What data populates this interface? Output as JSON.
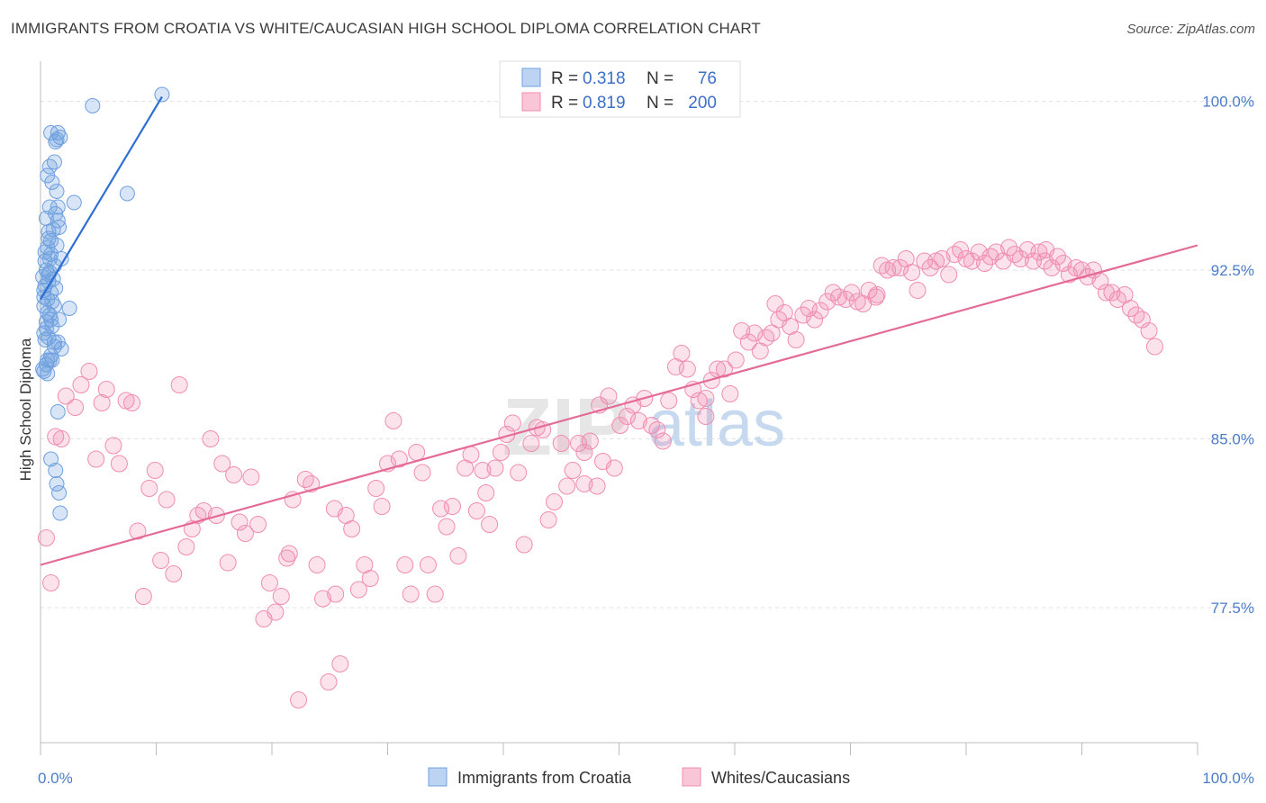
{
  "title": "IMMIGRANTS FROM CROATIA VS WHITE/CAUCASIAN HIGH SCHOOL DIPLOMA CORRELATION CHART",
  "source": "Source: ZipAtlas.com",
  "watermark": {
    "zip": "ZIP",
    "atlas": "atlas"
  },
  "colors": {
    "blue": "#6fa0e0",
    "blue_line": "#2f6fd1",
    "pink": "#f08db0",
    "pink_line": "#e46a98",
    "axis_text": "#4a7cc9",
    "grid": "#e2e2e2"
  },
  "legend": {
    "r_label": "R =",
    "n_label": "N =",
    "entries": [
      {
        "r": "0.318",
        "n": "76"
      },
      {
        "r": "0.819",
        "n": "200"
      }
    ]
  },
  "chart_data": {
    "type": "scatter",
    "title": "IMMIGRANTS FROM CROATIA VS WHITE/CAUCASIAN HIGH SCHOOL DIPLOMA CORRELATION CHART",
    "xlabel": "",
    "ylabel": "High School Diploma",
    "xlim": [
      0,
      100
    ],
    "ylim": [
      71.5,
      101.5
    ],
    "x_tick_labels": [
      "0.0%",
      "100.0%"
    ],
    "y_ticks": [
      77.5,
      85.0,
      92.5,
      100.0
    ],
    "y_tick_labels": [
      "77.5%",
      "85.0%",
      "92.5%",
      "100.0%"
    ],
    "grid": true,
    "legend_position": "top-center",
    "series": [
      {
        "name": "Immigrants from Croatia",
        "color": "#6fa0e0",
        "trend": {
          "x": [
            0,
            10.5
          ],
          "y": [
            91.2,
            100.2
          ]
        },
        "points": [
          [
            0.3,
            88.0
          ],
          [
            0.5,
            88.3
          ],
          [
            0.6,
            88.5
          ],
          [
            0.8,
            88.5
          ],
          [
            1.0,
            88.5
          ],
          [
            0.4,
            89.4
          ],
          [
            0.7,
            89.5
          ],
          [
            1.2,
            89.3
          ],
          [
            1.5,
            89.3
          ],
          [
            0.5,
            90.2
          ],
          [
            0.8,
            90.5
          ],
          [
            1.0,
            90.0
          ],
          [
            1.6,
            90.3
          ],
          [
            2.5,
            90.8
          ],
          [
            0.3,
            90.9
          ],
          [
            0.6,
            91.2
          ],
          [
            0.9,
            91.5
          ],
          [
            1.3,
            91.7
          ],
          [
            0.4,
            91.8
          ],
          [
            0.7,
            92.0
          ],
          [
            0.2,
            92.2
          ],
          [
            0.5,
            92.5
          ],
          [
            1.2,
            92.7
          ],
          [
            0.8,
            93.0
          ],
          [
            1.8,
            93.0
          ],
          [
            0.6,
            93.5
          ],
          [
            0.9,
            93.8
          ],
          [
            1.4,
            93.6
          ],
          [
            0.7,
            94.2
          ],
          [
            1.1,
            94.3
          ],
          [
            1.6,
            94.4
          ],
          [
            0.5,
            94.8
          ],
          [
            1.3,
            95.0
          ],
          [
            1.5,
            95.3
          ],
          [
            2.9,
            95.5
          ],
          [
            0.8,
            95.3
          ],
          [
            1.4,
            96.0
          ],
          [
            7.5,
            95.9
          ],
          [
            0.6,
            96.7
          ],
          [
            1.0,
            96.4
          ],
          [
            0.8,
            97.1
          ],
          [
            1.2,
            97.3
          ],
          [
            0.9,
            98.6
          ],
          [
            1.5,
            98.6
          ],
          [
            1.4,
            98.3
          ],
          [
            1.7,
            98.4
          ],
          [
            1.3,
            98.2
          ],
          [
            4.5,
            99.8
          ],
          [
            10.5,
            100.3
          ],
          [
            1.5,
            86.2
          ],
          [
            0.9,
            84.1
          ],
          [
            1.3,
            83.6
          ],
          [
            1.4,
            83.0
          ],
          [
            1.6,
            82.6
          ],
          [
            1.7,
            81.7
          ],
          [
            0.5,
            89.9
          ],
          [
            0.9,
            90.3
          ],
          [
            1.2,
            89.1
          ],
          [
            0.3,
            91.6
          ],
          [
            0.7,
            92.3
          ],
          [
            1.1,
            92.1
          ],
          [
            0.4,
            93.3
          ],
          [
            0.9,
            93.2
          ],
          [
            0.3,
            89.7
          ],
          [
            0.2,
            88.1
          ],
          [
            0.6,
            87.9
          ],
          [
            1.8,
            89.0
          ],
          [
            0.9,
            88.7
          ],
          [
            0.4,
            92.9
          ],
          [
            1.0,
            91.1
          ],
          [
            0.6,
            90.6
          ],
          [
            1.2,
            90.9
          ],
          [
            0.3,
            91.3
          ],
          [
            0.8,
            92.4
          ],
          [
            1.5,
            94.7
          ],
          [
            0.7,
            93.9
          ]
        ]
      },
      {
        "name": "Whites/Caucasians",
        "color": "#f08db0",
        "trend": {
          "x": [
            0,
            100
          ],
          "y": [
            79.4,
            93.6
          ]
        },
        "points": [
          [
            0.5,
            80.6
          ],
          [
            0.9,
            78.6
          ],
          [
            1.3,
            85.1
          ],
          [
            1.8,
            85.0
          ],
          [
            2.2,
            86.9
          ],
          [
            3.0,
            86.4
          ],
          [
            3.5,
            87.4
          ],
          [
            4.2,
            88.0
          ],
          [
            4.8,
            84.1
          ],
          [
            5.3,
            86.6
          ],
          [
            5.7,
            87.2
          ],
          [
            6.3,
            84.7
          ],
          [
            6.8,
            83.9
          ],
          [
            7.4,
            86.7
          ],
          [
            7.9,
            86.6
          ],
          [
            8.4,
            80.9
          ],
          [
            8.9,
            78.0
          ],
          [
            9.4,
            82.8
          ],
          [
            9.9,
            83.6
          ],
          [
            10.4,
            79.6
          ],
          [
            10.9,
            82.3
          ],
          [
            11.5,
            79.0
          ],
          [
            12.0,
            87.4
          ],
          [
            12.6,
            80.2
          ],
          [
            13.1,
            81.0
          ],
          [
            13.6,
            81.6
          ],
          [
            14.1,
            81.8
          ],
          [
            14.7,
            85.0
          ],
          [
            15.2,
            81.6
          ],
          [
            15.7,
            83.9
          ],
          [
            16.2,
            79.5
          ],
          [
            16.7,
            83.4
          ],
          [
            17.2,
            81.3
          ],
          [
            17.7,
            80.8
          ],
          [
            18.2,
            83.3
          ],
          [
            18.8,
            81.2
          ],
          [
            19.3,
            77.0
          ],
          [
            19.8,
            78.6
          ],
          [
            20.3,
            77.3
          ],
          [
            20.8,
            78.0
          ],
          [
            21.3,
            79.7
          ],
          [
            21.8,
            82.3
          ],
          [
            22.3,
            73.4
          ],
          [
            22.9,
            83.2
          ],
          [
            23.4,
            83.0
          ],
          [
            23.9,
            79.4
          ],
          [
            24.4,
            77.9
          ],
          [
            24.9,
            74.2
          ],
          [
            25.4,
            81.9
          ],
          [
            25.9,
            75.0
          ],
          [
            26.4,
            81.6
          ],
          [
            26.9,
            81.0
          ],
          [
            27.5,
            78.3
          ],
          [
            28.0,
            79.4
          ],
          [
            28.5,
            78.8
          ],
          [
            29.0,
            82.8
          ],
          [
            29.5,
            82.0
          ],
          [
            30.0,
            83.9
          ],
          [
            30.5,
            85.8
          ],
          [
            31.0,
            84.1
          ],
          [
            31.5,
            79.4
          ],
          [
            32.0,
            78.1
          ],
          [
            32.5,
            84.4
          ],
          [
            33.0,
            83.5
          ],
          [
            33.5,
            79.4
          ],
          [
            34.1,
            78.1
          ],
          [
            34.6,
            81.9
          ],
          [
            35.1,
            81.1
          ],
          [
            35.6,
            82.0
          ],
          [
            36.1,
            79.8
          ],
          [
            36.7,
            83.7
          ],
          [
            37.2,
            84.3
          ],
          [
            37.7,
            81.8
          ],
          [
            38.2,
            83.6
          ],
          [
            38.8,
            81.2
          ],
          [
            39.3,
            83.7
          ],
          [
            39.8,
            84.4
          ],
          [
            40.3,
            85.2
          ],
          [
            40.8,
            85.7
          ],
          [
            41.3,
            83.5
          ],
          [
            41.8,
            80.3
          ],
          [
            42.4,
            84.8
          ],
          [
            42.9,
            85.5
          ],
          [
            43.4,
            85.4
          ],
          [
            43.9,
            81.4
          ],
          [
            44.4,
            82.2
          ],
          [
            45.0,
            84.8
          ],
          [
            45.5,
            82.9
          ],
          [
            46.0,
            83.6
          ],
          [
            46.5,
            84.8
          ],
          [
            47.0,
            84.4
          ],
          [
            47.5,
            84.9
          ],
          [
            48.1,
            82.9
          ],
          [
            48.6,
            84.0
          ],
          [
            49.1,
            86.9
          ],
          [
            49.6,
            83.7
          ],
          [
            50.1,
            85.6
          ],
          [
            50.7,
            86.0
          ],
          [
            51.2,
            86.5
          ],
          [
            51.7,
            85.8
          ],
          [
            52.2,
            86.8
          ],
          [
            52.8,
            85.6
          ],
          [
            53.3,
            85.4
          ],
          [
            53.8,
            84.9
          ],
          [
            54.3,
            86.7
          ],
          [
            54.9,
            88.2
          ],
          [
            55.4,
            88.8
          ],
          [
            55.9,
            88.1
          ],
          [
            56.4,
            87.2
          ],
          [
            56.9,
            86.7
          ],
          [
            57.5,
            86.8
          ],
          [
            58.0,
            87.6
          ],
          [
            58.5,
            88.1
          ],
          [
            59.1,
            88.1
          ],
          [
            59.6,
            87.0
          ],
          [
            60.1,
            88.5
          ],
          [
            60.6,
            89.8
          ],
          [
            61.2,
            89.3
          ],
          [
            61.7,
            89.7
          ],
          [
            62.2,
            88.9
          ],
          [
            62.7,
            89.5
          ],
          [
            63.2,
            89.7
          ],
          [
            63.8,
            90.3
          ],
          [
            64.3,
            90.6
          ],
          [
            64.8,
            90.0
          ],
          [
            65.3,
            89.4
          ],
          [
            65.9,
            90.5
          ],
          [
            66.4,
            90.8
          ],
          [
            66.9,
            90.3
          ],
          [
            67.4,
            90.7
          ],
          [
            68.0,
            91.1
          ],
          [
            68.5,
            91.5
          ],
          [
            69.0,
            91.3
          ],
          [
            69.6,
            91.2
          ],
          [
            70.1,
            91.5
          ],
          [
            70.6,
            91.1
          ],
          [
            71.1,
            91.0
          ],
          [
            71.6,
            91.6
          ],
          [
            72.2,
            91.3
          ],
          [
            72.7,
            92.7
          ],
          [
            73.2,
            92.5
          ],
          [
            73.7,
            92.6
          ],
          [
            74.3,
            92.6
          ],
          [
            74.8,
            93.0
          ],
          [
            75.3,
            92.4
          ],
          [
            75.8,
            91.6
          ],
          [
            76.4,
            92.9
          ],
          [
            76.9,
            92.6
          ],
          [
            77.4,
            92.9
          ],
          [
            77.9,
            93.0
          ],
          [
            78.5,
            92.3
          ],
          [
            79.0,
            93.2
          ],
          [
            79.5,
            93.4
          ],
          [
            80.0,
            93.0
          ],
          [
            80.5,
            92.9
          ],
          [
            81.1,
            93.3
          ],
          [
            81.6,
            92.8
          ],
          [
            82.1,
            93.1
          ],
          [
            82.6,
            93.3
          ],
          [
            83.2,
            92.9
          ],
          [
            83.7,
            93.5
          ],
          [
            84.2,
            93.2
          ],
          [
            84.7,
            93.0
          ],
          [
            85.3,
            93.4
          ],
          [
            85.8,
            92.9
          ],
          [
            86.3,
            93.3
          ],
          [
            86.9,
            93.4
          ],
          [
            87.4,
            92.6
          ],
          [
            87.9,
            93.1
          ],
          [
            88.4,
            92.8
          ],
          [
            88.9,
            92.3
          ],
          [
            89.5,
            92.6
          ],
          [
            90.0,
            92.5
          ],
          [
            90.5,
            92.2
          ],
          [
            91.0,
            92.5
          ],
          [
            91.6,
            92.0
          ],
          [
            92.1,
            91.5
          ],
          [
            92.6,
            91.5
          ],
          [
            93.1,
            91.2
          ],
          [
            93.7,
            91.4
          ],
          [
            94.2,
            90.8
          ],
          [
            94.7,
            90.5
          ],
          [
            95.2,
            90.3
          ],
          [
            95.8,
            89.8
          ],
          [
            96.3,
            89.1
          ],
          [
            21.5,
            79.9
          ],
          [
            38.5,
            82.6
          ],
          [
            57.5,
            86.0
          ],
          [
            48.3,
            86.5
          ],
          [
            63.5,
            91.0
          ],
          [
            86.8,
            92.9
          ],
          [
            72.3,
            91.4
          ],
          [
            25.5,
            78.1
          ],
          [
            47.0,
            83.0
          ]
        ]
      }
    ]
  },
  "bottom_legend": [
    "Immigrants from Croatia",
    "Whites/Caucasians"
  ]
}
